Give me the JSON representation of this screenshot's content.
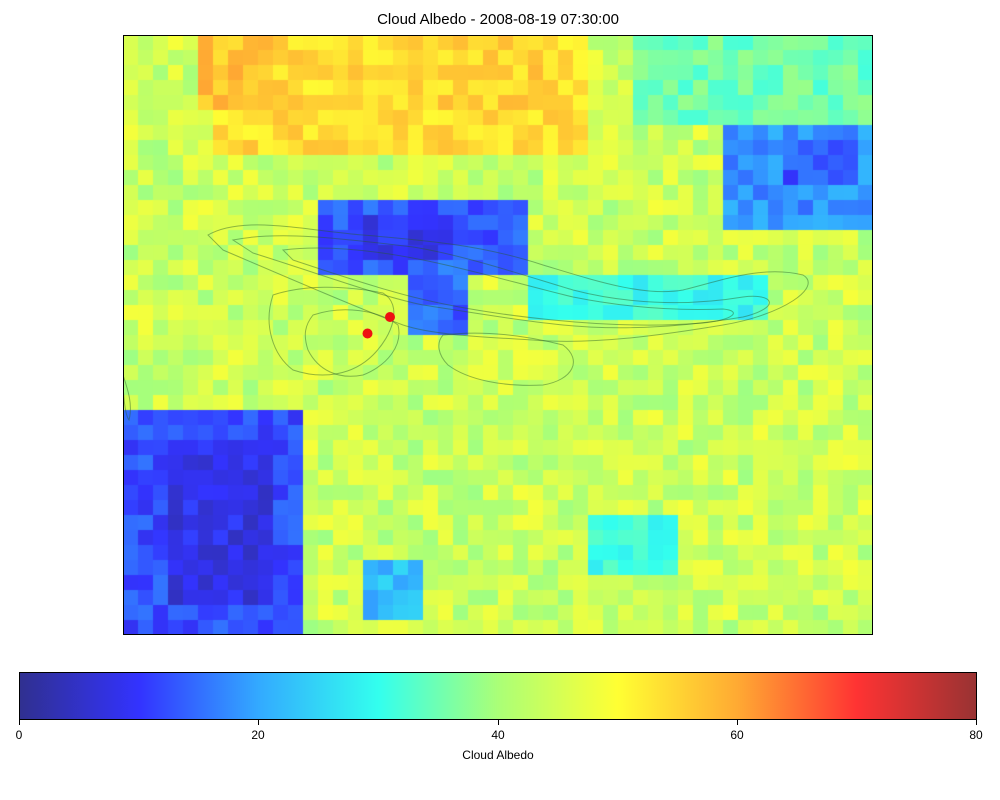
{
  "chart_data": {
    "type": "heatmap",
    "title": "Cloud Albedo - 2008-08-19 07:30:00",
    "colorbar": {
      "label": "Cloud Albedo",
      "vmin": 0,
      "vmax": 80,
      "ticks": [
        "0",
        "20",
        "40",
        "60",
        "80"
      ],
      "colormap": [
        "#303090",
        "#3333ff",
        "#33aaff",
        "#33ffee",
        "#aaff77",
        "#ffff33",
        "#ffaa33",
        "#ff3333",
        "#993333"
      ]
    },
    "grid_rows": 40,
    "grid_cols": 50,
    "background_value": 44,
    "regions": [
      {
        "name": "northern high albedo band",
        "rows": [
          0,
          8
        ],
        "cols": [
          6,
          31
        ],
        "value": 54
      },
      {
        "name": "northern peak",
        "rows": [
          0,
          5
        ],
        "cols": [
          5,
          10
        ],
        "value": 57
      },
      {
        "name": "northern high albedo east",
        "rows": [
          0,
          5
        ],
        "cols": [
          18,
          29
        ],
        "value": 55
      },
      {
        "name": "upper right moderate",
        "rows": [
          0,
          6
        ],
        "cols": [
          34,
          50
        ],
        "value": 35
      },
      {
        "name": "northeast low albedo cluster",
        "rows": [
          6,
          13
        ],
        "cols": [
          40,
          50
        ],
        "value": 18
      },
      {
        "name": "northeast low albedo core",
        "rows": [
          7,
          10
        ],
        "cols": [
          44,
          49
        ],
        "value": 13
      },
      {
        "name": "central low albedo (valley)",
        "rows": [
          11,
          16
        ],
        "cols": [
          13,
          27
        ],
        "value": 13
      },
      {
        "name": "central low albedo core",
        "rows": [
          12,
          15
        ],
        "cols": [
          16,
          22
        ],
        "value": 9
      },
      {
        "name": "valley tail",
        "rows": [
          15,
          20
        ],
        "cols": [
          19,
          23
        ],
        "value": 14
      },
      {
        "name": "eastern valley band",
        "rows": [
          16,
          19
        ],
        "cols": [
          27,
          43
        ],
        "value": 30
      },
      {
        "name": "western low albedo (southwest)",
        "rows": [
          25,
          40
        ],
        "cols": [
          0,
          12
        ],
        "value": 12
      },
      {
        "name": "southwest core",
        "rows": [
          27,
          38
        ],
        "cols": [
          3,
          10
        ],
        "value": 8
      },
      {
        "name": "southern small patch",
        "rows": [
          35,
          39
        ],
        "cols": [
          16,
          20
        ],
        "value": 22
      },
      {
        "name": "south central moderate",
        "rows": [
          32,
          36
        ],
        "cols": [
          31,
          37
        ],
        "value": 30
      }
    ],
    "markers": [
      {
        "name": "site 1",
        "x_col": 17.8,
        "y_row": 18.8,
        "color": "#ee1111"
      },
      {
        "name": "site 2",
        "x_col": 16.3,
        "y_row": 19.9,
        "color": "#ee1111"
      }
    ]
  }
}
